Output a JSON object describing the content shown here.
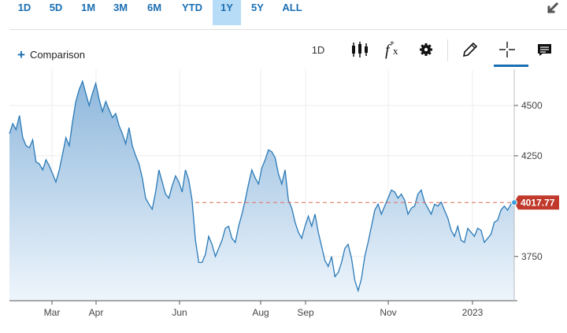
{
  "range_tabs": [
    {
      "label": "1D",
      "active": false
    },
    {
      "label": "5D",
      "active": false
    },
    {
      "label": "1M",
      "active": false
    },
    {
      "label": "3M",
      "active": false
    },
    {
      "label": "6M",
      "active": false
    },
    {
      "label": "YTD",
      "active": false
    },
    {
      "label": "1Y",
      "active": true
    },
    {
      "label": "5Y",
      "active": false
    },
    {
      "label": "ALL",
      "active": false
    }
  ],
  "toolbar": {
    "comparison_label": "Comparison",
    "interval_label": "1D",
    "icons": [
      "candlestick-icon",
      "fx-icon",
      "gear-icon",
      "pencil-icon",
      "crosshair-icon",
      "news-icon"
    ]
  },
  "colors": {
    "accent": "#1a6fb3",
    "line": "#2a7ab8",
    "current_price_bg": "#c0392b",
    "reference_line": "#e07b6a"
  },
  "chart_data": {
    "type": "area",
    "x_tick_labels": [
      "Mar",
      "Apr",
      "Jun",
      "Aug",
      "Sep",
      "Nov",
      "2023"
    ],
    "y_tick_labels": [
      "4500",
      "4250",
      "3750"
    ],
    "ylim": [
      3530,
      4680
    ],
    "current_price": "4017.77",
    "current_value": 4017.77,
    "values": [
      4360,
      4410,
      4380,
      4450,
      4340,
      4300,
      4290,
      4330,
      4220,
      4210,
      4180,
      4230,
      4200,
      4160,
      4120,
      4180,
      4260,
      4340,
      4300,
      4420,
      4520,
      4580,
      4620,
      4560,
      4500,
      4560,
      4610,
      4530,
      4470,
      4520,
      4480,
      4440,
      4460,
      4400,
      4360,
      4310,
      4390,
      4300,
      4250,
      4210,
      4140,
      4040,
      4010,
      3985,
      4070,
      4180,
      4120,
      4060,
      4040,
      4100,
      4150,
      4120,
      4070,
      4180,
      4130,
      4030,
      3830,
      3720,
      3720,
      3760,
      3850,
      3810,
      3750,
      3790,
      3830,
      3890,
      3900,
      3840,
      3820,
      3900,
      3960,
      4030,
      4110,
      4180,
      4140,
      4110,
      4190,
      4230,
      4280,
      4270,
      4240,
      4160,
      4110,
      4180,
      4030,
      3990,
      3920,
      3870,
      3840,
      3900,
      3950,
      3900,
      3960,
      3870,
      3800,
      3730,
      3700,
      3750,
      3650,
      3670,
      3720,
      3790,
      3810,
      3740,
      3630,
      3580,
      3640,
      3750,
      3820,
      3900,
      3980,
      4010,
      3960,
      4000,
      4040,
      4080,
      4070,
      4040,
      4060,
      4030,
      3960,
      3990,
      4000,
      4060,
      4080,
      4020,
      3990,
      3960,
      4010,
      4000,
      4020,
      3980,
      3940,
      3880,
      3850,
      3900,
      3830,
      3820,
      3890,
      3870,
      3850,
      3890,
      3880,
      3820,
      3840,
      3860,
      3920,
      3930,
      3980,
      4000,
      3980,
      4010,
      4017.77
    ]
  }
}
